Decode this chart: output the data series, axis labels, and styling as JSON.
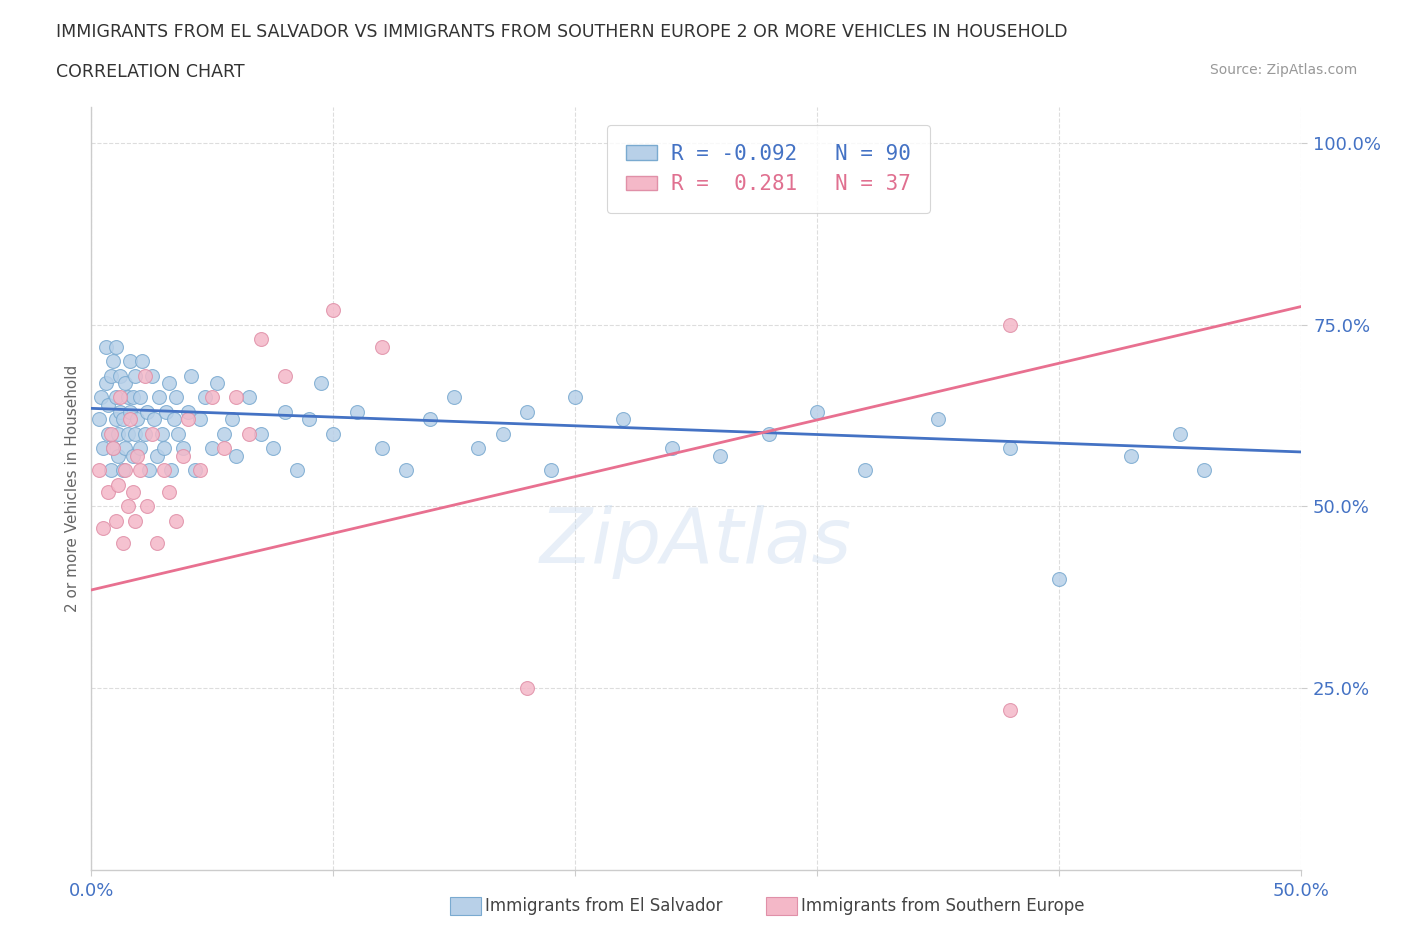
{
  "title_line1": "IMMIGRANTS FROM EL SALVADOR VS IMMIGRANTS FROM SOUTHERN EUROPE 2 OR MORE VEHICLES IN HOUSEHOLD",
  "title_line2": "CORRELATION CHART",
  "source_text": "Source: ZipAtlas.com",
  "ylabel": "2 or more Vehicles in Household",
  "xlim": [
    0.0,
    0.5
  ],
  "ylim": [
    0.0,
    1.05
  ],
  "xticks": [
    0.0,
    0.1,
    0.2,
    0.3,
    0.4,
    0.5
  ],
  "yticks": [
    0.25,
    0.5,
    0.75,
    1.0
  ],
  "xticklabels": [
    "0.0%",
    "",
    "",
    "",
    "",
    "50.0%"
  ],
  "yticklabels": [
    "25.0%",
    "50.0%",
    "75.0%",
    "100.0%"
  ],
  "color_blue_fill": "#b8d0e8",
  "color_blue_edge": "#7aaad0",
  "color_pink_fill": "#f4b8c8",
  "color_pink_edge": "#e090a8",
  "color_blue_line": "#4472c4",
  "color_pink_line": "#e87090",
  "color_blue_text": "#4472c4",
  "color_pink_text": "#e07090",
  "watermark": "ZipAtlas",
  "blue_n": 90,
  "pink_n": 37,
  "legend_label1": "R = -0.092   N = 90",
  "legend_label2": "R =  0.281   N = 37",
  "blue_line_x0": 0.0,
  "blue_line_y0": 0.635,
  "blue_line_x1": 0.5,
  "blue_line_y1": 0.575,
  "pink_line_x0": 0.0,
  "pink_line_y0": 0.385,
  "pink_line_x1": 0.5,
  "pink_line_y1": 0.775,
  "blue_x": [
    0.003,
    0.004,
    0.005,
    0.006,
    0.006,
    0.007,
    0.007,
    0.008,
    0.008,
    0.009,
    0.009,
    0.01,
    0.01,
    0.01,
    0.011,
    0.011,
    0.012,
    0.012,
    0.013,
    0.013,
    0.014,
    0.014,
    0.015,
    0.015,
    0.016,
    0.016,
    0.017,
    0.017,
    0.018,
    0.018,
    0.019,
    0.02,
    0.02,
    0.021,
    0.022,
    0.023,
    0.024,
    0.025,
    0.026,
    0.027,
    0.028,
    0.029,
    0.03,
    0.031,
    0.032,
    0.033,
    0.034,
    0.035,
    0.036,
    0.038,
    0.04,
    0.041,
    0.043,
    0.045,
    0.047,
    0.05,
    0.052,
    0.055,
    0.058,
    0.06,
    0.065,
    0.07,
    0.075,
    0.08,
    0.085,
    0.09,
    0.095,
    0.1,
    0.11,
    0.12,
    0.13,
    0.14,
    0.15,
    0.16,
    0.17,
    0.18,
    0.19,
    0.2,
    0.22,
    0.24,
    0.26,
    0.28,
    0.3,
    0.32,
    0.35,
    0.38,
    0.4,
    0.43,
    0.45,
    0.46
  ],
  "blue_y": [
    0.62,
    0.65,
    0.58,
    0.67,
    0.72,
    0.6,
    0.64,
    0.55,
    0.68,
    0.7,
    0.58,
    0.62,
    0.65,
    0.72,
    0.6,
    0.57,
    0.63,
    0.68,
    0.55,
    0.62,
    0.67,
    0.58,
    0.65,
    0.6,
    0.63,
    0.7,
    0.57,
    0.65,
    0.6,
    0.68,
    0.62,
    0.58,
    0.65,
    0.7,
    0.6,
    0.63,
    0.55,
    0.68,
    0.62,
    0.57,
    0.65,
    0.6,
    0.58,
    0.63,
    0.67,
    0.55,
    0.62,
    0.65,
    0.6,
    0.58,
    0.63,
    0.68,
    0.55,
    0.62,
    0.65,
    0.58,
    0.67,
    0.6,
    0.62,
    0.57,
    0.65,
    0.6,
    0.58,
    0.63,
    0.55,
    0.62,
    0.67,
    0.6,
    0.63,
    0.58,
    0.55,
    0.62,
    0.65,
    0.58,
    0.6,
    0.63,
    0.55,
    0.65,
    0.62,
    0.58,
    0.57,
    0.6,
    0.63,
    0.55,
    0.62,
    0.58,
    0.4,
    0.57,
    0.6,
    0.55
  ],
  "pink_x": [
    0.003,
    0.005,
    0.007,
    0.008,
    0.009,
    0.01,
    0.011,
    0.012,
    0.013,
    0.014,
    0.015,
    0.016,
    0.017,
    0.018,
    0.019,
    0.02,
    0.022,
    0.023,
    0.025,
    0.027,
    0.03,
    0.032,
    0.035,
    0.038,
    0.04,
    0.045,
    0.05,
    0.055,
    0.06,
    0.065,
    0.07,
    0.08,
    0.1,
    0.12,
    0.18,
    0.38,
    0.38
  ],
  "pink_y": [
    0.55,
    0.47,
    0.52,
    0.6,
    0.58,
    0.48,
    0.53,
    0.65,
    0.45,
    0.55,
    0.5,
    0.62,
    0.52,
    0.48,
    0.57,
    0.55,
    0.68,
    0.5,
    0.6,
    0.45,
    0.55,
    0.52,
    0.48,
    0.57,
    0.62,
    0.55,
    0.65,
    0.58,
    0.65,
    0.6,
    0.73,
    0.68,
    0.77,
    0.72,
    0.25,
    0.75,
    0.22
  ]
}
